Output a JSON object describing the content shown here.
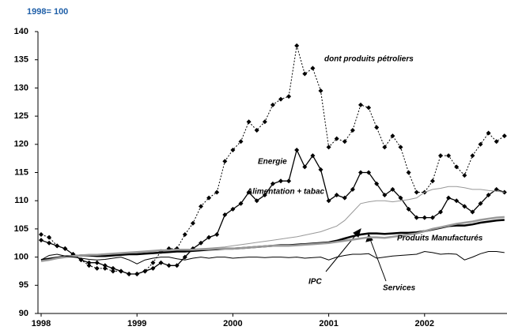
{
  "chart_data": {
    "type": "line",
    "subtitle": "1998= 100",
    "categories": [
      "1998",
      null,
      null,
      null,
      null,
      null,
      null,
      null,
      null,
      null,
      null,
      null,
      "1999",
      null,
      null,
      null,
      null,
      null,
      null,
      null,
      null,
      null,
      null,
      null,
      "2000",
      null,
      null,
      null,
      null,
      null,
      null,
      null,
      null,
      null,
      null,
      null,
      "2001",
      null,
      null,
      null,
      null,
      null,
      null,
      null,
      null,
      null,
      null,
      null,
      "2002",
      null,
      null,
      null,
      null,
      null,
      null,
      null,
      null,
      null,
      null
    ],
    "ylim": [
      90,
      140
    ],
    "yticks": [
      90,
      95,
      100,
      105,
      110,
      115,
      120,
      125,
      130,
      135,
      140
    ],
    "grid": false,
    "series": [
      {
        "name": "dont produits pétroliers",
        "color": "#000000",
        "values": [
          104,
          103.5,
          102,
          101.5,
          100.5,
          99.5,
          98.5,
          98,
          98,
          97.5,
          97.5,
          97,
          97,
          97.5,
          99,
          101,
          101.5,
          101.5,
          104,
          106,
          109,
          110.5,
          111.5,
          117,
          119,
          120.5,
          124,
          122.5,
          124,
          127,
          128,
          128.5,
          137.5,
          132.5,
          133.5,
          129.5,
          119.5,
          121,
          120.5,
          122.5,
          127,
          126.5,
          123,
          119.5,
          121.5,
          119.5,
          115,
          111.5,
          111.5,
          113.5,
          118,
          118,
          116,
          114.5,
          118,
          120,
          122,
          120.5,
          121.5
        ]
      },
      {
        "name": "Energie",
        "color": "#000000",
        "values": [
          103,
          102.5,
          102,
          101.5,
          100.5,
          99.5,
          99,
          99,
          98.5,
          98,
          97.5,
          97,
          97,
          97.5,
          98,
          99,
          98.5,
          98.5,
          100,
          101.5,
          102.5,
          103.5,
          104,
          107.5,
          108.5,
          109.5,
          111.5,
          110,
          111,
          113,
          113.5,
          113.5,
          119,
          116,
          118,
          115.5,
          110,
          111,
          110.5,
          112,
          115,
          115,
          113,
          111,
          112,
          110.5,
          108.5,
          107,
          107,
          107,
          108,
          110.5,
          110,
          109,
          108,
          109.5,
          111,
          112,
          111.5
        ]
      },
      {
        "name": "Alimentation + tabac",
        "color": "#999999",
        "values": [
          99.5,
          99.7,
          99.8,
          100,
          100,
          100.2,
          100.3,
          100.3,
          100.4,
          100.5,
          100.6,
          100.7,
          100.8,
          100.9,
          101,
          101.1,
          101.2,
          101.3,
          101.3,
          101.4,
          101.5,
          101.6,
          101.7,
          101.8,
          102,
          102.2,
          102.4,
          102.6,
          102.8,
          103,
          103.2,
          103.4,
          103.6,
          103.9,
          104.2,
          104.5,
          105,
          105.5,
          106.5,
          108,
          109.5,
          109.8,
          110,
          110,
          109.8,
          110,
          110.2,
          110.5,
          111.5,
          112,
          112.2,
          112.5,
          112.5,
          112.3,
          112,
          112,
          111.8,
          111.7,
          111.5
        ]
      },
      {
        "name": "IPC",
        "color": "#000000",
        "values": [
          99.5,
          99.7,
          99.9,
          100.1,
          100.2,
          100.3,
          100.3,
          100.2,
          100.2,
          100.3,
          100.4,
          100.5,
          100.5,
          100.6,
          100.7,
          100.8,
          100.9,
          101,
          101,
          101.1,
          101.2,
          101.3,
          101.4,
          101.5,
          101.5,
          101.6,
          101.7,
          101.8,
          101.9,
          102,
          102.1,
          102.1,
          102.2,
          102.3,
          102.4,
          102.5,
          102.6,
          102.9,
          103.3,
          103.7,
          104,
          104.2,
          104.2,
          104.1,
          104.2,
          104.3,
          104.3,
          104.4,
          104.6,
          104.9,
          105.2,
          105.5,
          105.6,
          105.6,
          105.8,
          106.1,
          106.3,
          106.5,
          106.6
        ]
      },
      {
        "name": "Services",
        "color": "#999999",
        "values": [
          99.3,
          99.5,
          99.8,
          100,
          100.2,
          100.3,
          100.4,
          100.4,
          100.5,
          100.6,
          100.7,
          100.8,
          100.9,
          101,
          101.1,
          101.2,
          101.2,
          101.3,
          101.3,
          101.3,
          101.4,
          101.4,
          101.5,
          101.5,
          101.5,
          101.6,
          101.7,
          101.8,
          101.9,
          102,
          102,
          102,
          102.1,
          102.2,
          102.3,
          102.4,
          102.5,
          102.7,
          102.9,
          103.1,
          103.3,
          103.5,
          103.5,
          103.4,
          103.6,
          103.8,
          104,
          104.2,
          104.6,
          105,
          105.3,
          105.6,
          105.9,
          106.1,
          106.3,
          106.6,
          106.8,
          107,
          107.1
        ]
      },
      {
        "name": "Produits Manufacturés",
        "color": "#000000",
        "values": [
          99.5,
          100.3,
          100.5,
          100.2,
          100,
          99.8,
          99.6,
          99.5,
          99.6,
          99.8,
          100,
          99.5,
          98.8,
          99.5,
          99.8,
          100,
          100,
          99.7,
          99.5,
          99.8,
          100,
          99.8,
          100,
          100,
          99.8,
          99.9,
          100,
          100,
          99.9,
          100,
          100,
          99.9,
          100,
          99.8,
          99.9,
          100,
          99.5,
          100,
          100.3,
          100.5,
          100.5,
          100.6,
          99.8,
          100,
          100.2,
          100.3,
          100.4,
          100.5,
          101,
          100.8,
          100.5,
          100.6,
          100.5,
          99.5,
          100,
          100.6,
          101,
          101,
          100.8
        ]
      }
    ]
  }
}
